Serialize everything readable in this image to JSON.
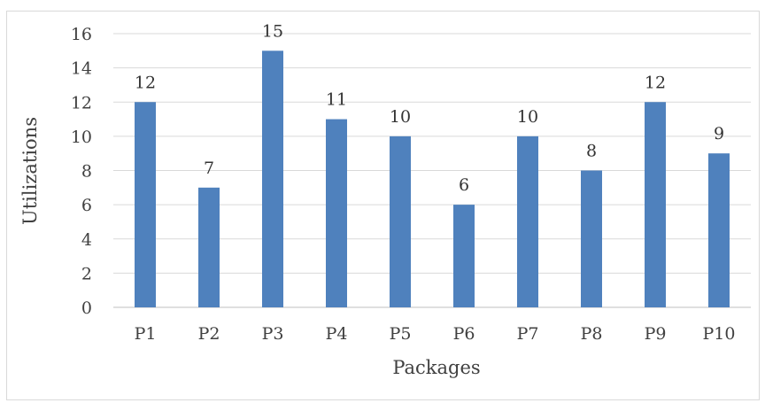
{
  "chart_data": {
    "type": "bar",
    "title": "",
    "xlabel": "Packages",
    "ylabel": "Utilizations",
    "categories": [
      "P1",
      "P2",
      "P3",
      "P4",
      "P5",
      "P6",
      "P7",
      "P8",
      "P9",
      "P10"
    ],
    "values": [
      12,
      7,
      15,
      11,
      10,
      6,
      10,
      8,
      12,
      9
    ],
    "ylim": [
      0,
      16
    ],
    "yticks": [
      "0",
      "2",
      "4",
      "6",
      "8",
      "10",
      "12",
      "14",
      "16"
    ],
    "grid": true,
    "legend": "none",
    "bar_color": "#4f81bd",
    "grid_color": "#d9d9d9"
  }
}
